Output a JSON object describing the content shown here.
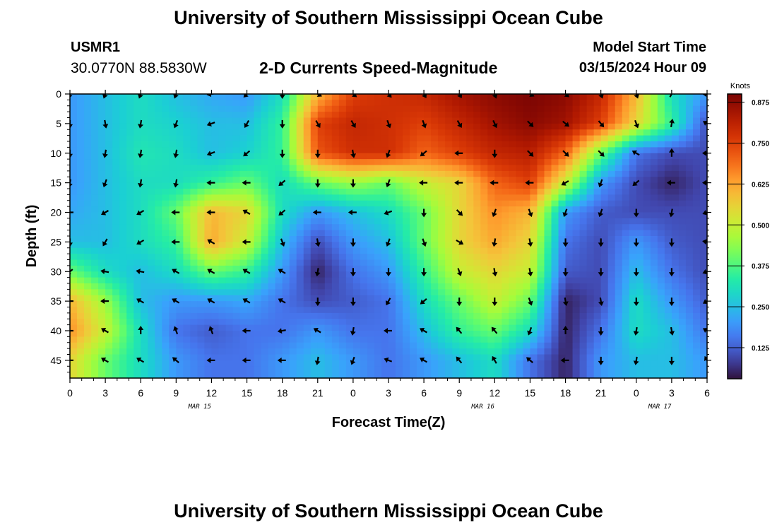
{
  "header": {
    "title": "University of Southern Mississippi Ocean Cube",
    "station_id": "USMR1",
    "coordinates": "30.0770N  88.5830W",
    "plot_title": "2-D Currents Speed-Magnitude",
    "model_start_label": "Model Start Time",
    "model_start_value": "03/15/2024 Hour 09"
  },
  "footer": {
    "title": "University of Southern Mississippi Ocean Cube"
  },
  "chart_data": {
    "type": "heatmap",
    "xlabel": "Forecast Time(Z)",
    "ylabel": "Depth (ft)",
    "x_tick_labels": [
      "0",
      "3",
      "6",
      "9",
      "12",
      "15",
      "18",
      "21",
      "0",
      "3",
      "6",
      "9",
      "12",
      "15",
      "18",
      "21",
      "0",
      "3",
      "6"
    ],
    "date_labels": [
      {
        "label": "MAR 15",
        "at_hours": 11
      },
      {
        "label": "MAR 16",
        "at_hours": 35
      },
      {
        "label": "MAR 17",
        "at_hours": 50
      }
    ],
    "xlim_hours": [
      0,
      54
    ],
    "y_ticks": [
      0,
      5,
      10,
      15,
      20,
      25,
      30,
      35,
      40,
      45
    ],
    "ylim": [
      0,
      48
    ],
    "y_inverted": true,
    "colorbar": {
      "label": "Knots",
      "ticks": [
        0.125,
        0.25,
        0.375,
        0.5,
        0.625,
        0.75,
        0.875
      ],
      "tick_labels": [
        "0.125",
        "0.250",
        "0.375",
        "0.500",
        "0.625",
        "0.750",
        "0.875"
      ],
      "range": [
        0.03,
        0.9
      ],
      "colormap": "turbo"
    },
    "grid_times_hours": [
      0,
      3,
      6,
      9,
      12,
      15,
      18,
      21,
      24,
      27,
      30,
      33,
      36,
      39,
      42,
      45,
      48,
      51,
      54
    ],
    "grid_depths_ft": [
      0,
      5,
      10,
      15,
      20,
      25,
      30,
      35,
      40,
      45
    ],
    "speed_knots": [
      [
        0.2,
        0.25,
        0.3,
        0.25,
        0.22,
        0.2,
        0.3,
        0.6,
        0.75,
        0.78,
        0.8,
        0.85,
        0.88,
        0.9,
        0.88,
        0.8,
        0.6,
        0.3,
        0.2
      ],
      [
        0.2,
        0.25,
        0.3,
        0.28,
        0.25,
        0.25,
        0.35,
        0.75,
        0.8,
        0.78,
        0.75,
        0.8,
        0.85,
        0.88,
        0.85,
        0.75,
        0.55,
        0.35,
        0.1
      ],
      [
        0.2,
        0.25,
        0.32,
        0.3,
        0.25,
        0.28,
        0.35,
        0.72,
        0.78,
        0.78,
        0.7,
        0.75,
        0.8,
        0.82,
        0.7,
        0.4,
        0.15,
        0.1,
        0.1
      ],
      [
        0.2,
        0.25,
        0.3,
        0.3,
        0.35,
        0.4,
        0.3,
        0.4,
        0.45,
        0.4,
        0.5,
        0.55,
        0.7,
        0.75,
        0.5,
        0.2,
        0.1,
        0.05,
        0.1
      ],
      [
        0.22,
        0.25,
        0.3,
        0.4,
        0.6,
        0.55,
        0.3,
        0.2,
        0.25,
        0.3,
        0.4,
        0.55,
        0.65,
        0.6,
        0.2,
        0.12,
        0.1,
        0.1,
        0.1
      ],
      [
        0.25,
        0.25,
        0.3,
        0.35,
        0.62,
        0.5,
        0.25,
        0.1,
        0.2,
        0.25,
        0.4,
        0.55,
        0.62,
        0.55,
        0.15,
        0.1,
        0.2,
        0.12,
        0.1
      ],
      [
        0.4,
        0.3,
        0.25,
        0.3,
        0.4,
        0.35,
        0.2,
        0.05,
        0.15,
        0.2,
        0.35,
        0.5,
        0.55,
        0.5,
        0.12,
        0.1,
        0.25,
        0.15,
        0.1
      ],
      [
        0.6,
        0.45,
        0.25,
        0.2,
        0.2,
        0.22,
        0.15,
        0.1,
        0.12,
        0.15,
        0.3,
        0.4,
        0.5,
        0.4,
        0.05,
        0.1,
        0.3,
        0.2,
        0.12
      ],
      [
        0.65,
        0.5,
        0.3,
        0.15,
        0.12,
        0.15,
        0.15,
        0.2,
        0.15,
        0.15,
        0.25,
        0.35,
        0.4,
        0.3,
        0.05,
        0.15,
        0.3,
        0.25,
        0.15
      ],
      [
        0.55,
        0.4,
        0.3,
        0.2,
        0.15,
        0.15,
        0.2,
        0.25,
        0.2,
        0.15,
        0.2,
        0.25,
        0.3,
        0.15,
        0.05,
        0.2,
        0.25,
        0.25,
        0.2
      ]
    ],
    "direction_deg": [
      [
        200,
        200,
        200,
        200,
        260,
        225,
        180,
        120,
        130,
        140,
        150,
        150,
        160,
        120,
        130,
        160,
        160,
        30,
        270
      ],
      [
        180,
        170,
        190,
        200,
        250,
        210,
        180,
        150,
        150,
        160,
        160,
        150,
        155,
        135,
        130,
        140,
        160,
        10,
        300
      ],
      [
        180,
        190,
        190,
        190,
        250,
        230,
        180,
        180,
        170,
        200,
        230,
        270,
        180,
        135,
        135,
        135,
        300,
        0,
        270
      ],
      [
        190,
        200,
        190,
        190,
        270,
        270,
        230,
        180,
        180,
        200,
        270,
        270,
        270,
        270,
        240,
        200,
        230,
        270,
        270
      ],
      [
        270,
        240,
        240,
        270,
        270,
        300,
        230,
        270,
        270,
        250,
        180,
        135,
        200,
        160,
        200,
        200,
        180,
        190,
        250
      ],
      [
        180,
        210,
        240,
        270,
        300,
        270,
        160,
        170,
        180,
        200,
        160,
        120,
        190,
        170,
        180,
        180,
        180,
        180,
        280
      ],
      [
        230,
        280,
        280,
        300,
        300,
        300,
        300,
        190,
        180,
        180,
        180,
        160,
        170,
        170,
        180,
        180,
        180,
        180,
        250
      ],
      [
        270,
        270,
        300,
        300,
        300,
        300,
        300,
        180,
        180,
        210,
        230,
        180,
        180,
        160,
        170,
        170,
        180,
        180,
        240
      ],
      [
        270,
        300,
        0,
        340,
        340,
        270,
        260,
        300,
        190,
        270,
        300,
        320,
        320,
        200,
        0,
        180,
        190,
        170,
        300
      ],
      [
        270,
        300,
        300,
        310,
        270,
        270,
        270,
        190,
        200,
        290,
        300,
        320,
        330,
        310,
        270,
        180,
        190,
        180,
        330
      ]
    ]
  }
}
